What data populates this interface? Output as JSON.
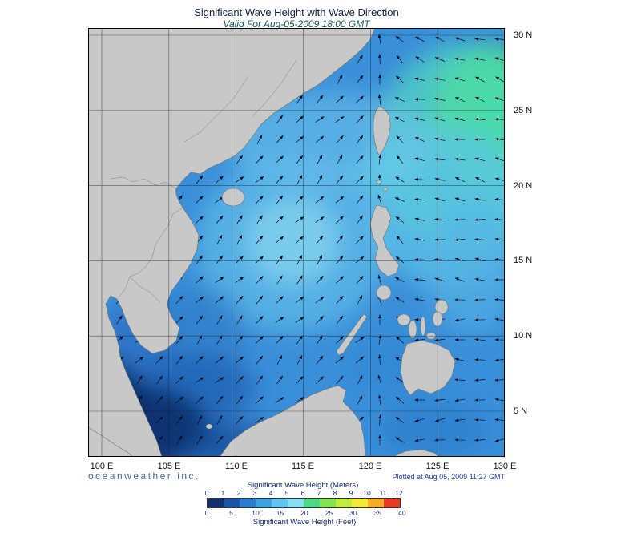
{
  "title": "Significant Wave Height with Wave Direction",
  "subtitle": "Valid For Aug-05-2009 18:00 GMT",
  "axes": {
    "x_ticks": [
      "100 E",
      "105 E",
      "110 E",
      "115 E",
      "120 E",
      "125 E",
      "130 E"
    ],
    "y_ticks": [
      "30 N",
      "25 N",
      "20 N",
      "15 N",
      "10 N",
      "5 N"
    ]
  },
  "footer": {
    "brand": "oceanweather inc.",
    "plotted_at": "Plotted at Aug 05, 2009 11:27 GMT"
  },
  "legend": {
    "meters_label": "Significant Wave Height (Meters)",
    "meters_ticks": [
      "0",
      "1",
      "2",
      "3",
      "4",
      "5",
      "6",
      "7",
      "8",
      "9",
      "10",
      "11",
      "12"
    ],
    "feet_label": "Significant Wave Height (Feet)",
    "feet_ticks": [
      "0",
      "5",
      "10",
      "15",
      "20",
      "25",
      "30",
      "35",
      "40"
    ],
    "colors": [
      "#12306e",
      "#1d52a5",
      "#2b7cce",
      "#3fa3e2",
      "#63c5ee",
      "#8adef2",
      "#4cd987",
      "#84e455",
      "#c3ec42",
      "#f3e93a",
      "#f6ab2a",
      "#e73a24"
    ],
    "arrow_color": "#0a0a1e",
    "ocean_base": "#3a8fd9",
    "land_color": "#c8c8c8"
  }
}
